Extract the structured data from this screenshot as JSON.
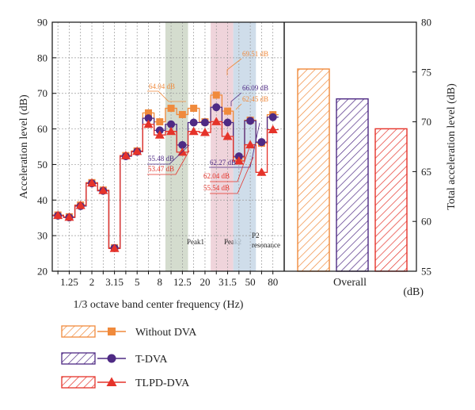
{
  "chart_data": {
    "type": "line",
    "title": "",
    "xlabel": "1/3 octave band center frequency (Hz)",
    "ylabel_left": "Acceleration level (dB)",
    "ylabel_right": "Total acceleration level (dB)",
    "right_unit_label": "(dB)",
    "overall_label": "Overall",
    "ylim_left": [
      20,
      90
    ],
    "yticks_left": [
      20,
      30,
      40,
      50,
      60,
      70,
      80,
      90
    ],
    "ylim_right": [
      55,
      80
    ],
    "yticks_right": [
      55,
      60,
      65,
      70,
      75,
      80
    ],
    "grid": true,
    "step_style": true,
    "x": [
      "1",
      "1.25",
      "1.6",
      "2",
      "2.5",
      "3.15",
      "4",
      "5",
      "6.3",
      "8",
      "10",
      "12.5",
      "16",
      "20",
      "25",
      "31.5",
      "40",
      "50",
      "63",
      "80"
    ],
    "x_tick_labels": [
      "1.25",
      "2",
      "3.15",
      "5",
      "8",
      "12.5",
      "20",
      "31.5",
      "50",
      "80"
    ],
    "series": [
      {
        "name": "Without DVA",
        "color": "#f08a3c",
        "marker": "square",
        "values": [
          35.8,
          35.3,
          38.6,
          44.9,
          42.8,
          26.6,
          52.5,
          53.8,
          64.5,
          62.0,
          65.8,
          64.04,
          65.8,
          62.0,
          69.51,
          65.0,
          52.0,
          62.45,
          56.0,
          64.0
        ]
      },
      {
        "name": "T-DVA",
        "color": "#4e2a84",
        "marker": "circle",
        "values": [
          35.6,
          35.1,
          38.3,
          44.7,
          42.6,
          26.5,
          52.3,
          53.6,
          63.0,
          59.6,
          61.3,
          55.48,
          61.8,
          61.8,
          66.09,
          61.8,
          52.3,
          62.27,
          56.3,
          63.3
        ]
      },
      {
        "name": "TLPD-DVA",
        "color": "#e5332a",
        "marker": "triangle",
        "values": [
          35.7,
          35.2,
          38.5,
          44.8,
          42.7,
          26.4,
          52.5,
          53.7,
          61.3,
          58.3,
          59.3,
          53.47,
          59.3,
          59.0,
          62.04,
          57.9,
          51.0,
          55.54,
          47.8,
          59.8
        ]
      }
    ],
    "overall": [
      {
        "name": "Without DVA",
        "value": 75.3
      },
      {
        "name": "T-DVA",
        "value": 72.3
      },
      {
        "name": "TLPD-DVA",
        "value": 69.3
      }
    ],
    "bands": [
      {
        "label": "Peak1",
        "from": "10",
        "to": "12.5",
        "color": "#c9d3c2"
      },
      {
        "label": "Peak2",
        "from": "25",
        "to": "31.5",
        "color": "#ebc9d2"
      },
      {
        "label": "P2\nresonance",
        "from": "40",
        "to": "50",
        "color": "#c3d5e5"
      }
    ],
    "annotations": [
      {
        "text": "64.04 dB",
        "series": "Without DVA"
      },
      {
        "text": "55.48 dB",
        "series": "T-DVA"
      },
      {
        "text": "53.47 dB",
        "series": "TLPD-DVA"
      },
      {
        "text": "69.51 dB",
        "series": "Without DVA"
      },
      {
        "text": "66.09 dB",
        "series": "T-DVA"
      },
      {
        "text": "62.45 dB",
        "series": "Without DVA"
      },
      {
        "text": "62.27 dB",
        "series": "T-DVA"
      },
      {
        "text": "62.04 dB",
        "series": "TLPD-DVA"
      },
      {
        "text": "55.54 dB",
        "series": "TLPD-DVA"
      }
    ],
    "legend": {
      "position": "bottom-left",
      "entries": [
        "Without DVA",
        "T-DVA",
        "TLPD-DVA"
      ]
    }
  }
}
